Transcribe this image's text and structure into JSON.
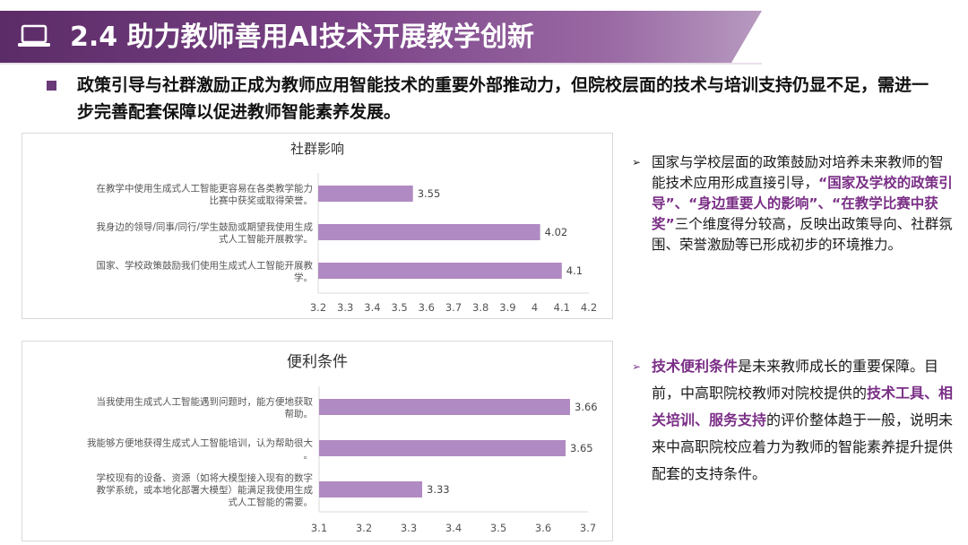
{
  "header": {
    "title": "2.4 助力教师善用AI技术开展教学创新",
    "icon": "laptop-icon"
  },
  "intro": {
    "text": "政策引导与社群激励正成为教师应用智能技术的重要外部推动力，但院校层面的技术与培训支持仍显不足，需进一步完善配套保障以促进教师智能素养发展。"
  },
  "chart_data": [
    {
      "type": "bar",
      "orientation": "horizontal",
      "title": "社群影响",
      "categories": [
        "在教学中使用生成式人工智能更容易在各类教学能力比赛中获奖或取得荣誉。",
        "我身边的领导/同事/同行/学生鼓励或期望我使用生成式人工智能开展教学。",
        "国家、学校政策鼓励我们使用生成式人工智能开展教学。"
      ],
      "category_lines": [
        [
          "在教学中使用生成式人工智能更容易在各类教学能力",
          "比赛中获奖或取得荣誉。"
        ],
        [
          "我身边的领导/同事/同行/学生鼓励或期望我使用生成",
          "式人工智能开展教学。"
        ],
        [
          "国家、学校政策鼓励我们使用生成式人工智能开展教",
          "学。"
        ]
      ],
      "values": [
        3.55,
        4.02,
        4.1
      ],
      "value_labels": [
        "3.55",
        "4.02",
        "4.1"
      ],
      "xlim": [
        3.2,
        4.2
      ],
      "ticks": [
        3.2,
        3.3,
        3.4,
        3.5,
        3.6,
        3.7,
        3.8,
        3.9,
        4,
        4.1,
        4.2
      ],
      "tick_labels": [
        "3.2",
        "3.3",
        "3.4",
        "3.5",
        "3.6",
        "3.7",
        "3.8",
        "3.9",
        "4",
        "4.1",
        "4.2"
      ],
      "bar_color": "#b08ac2",
      "grid": false,
      "legend": "none"
    },
    {
      "type": "bar",
      "orientation": "horizontal",
      "title": "便利条件",
      "categories": [
        "当我使用生成式人工智能遇到问题时，能方便地获取帮助。",
        "我能够方便地获得生成式人工智能培训，认为帮助很大。",
        "学校现有的设备、资源（如将大模型接入现有的数字教学系统，或本地化部署大模型）能满足我使用生成式人工智能的需要。"
      ],
      "category_lines": [
        [
          "当我使用生成式人工智能遇到问题时，能方便地获取",
          "帮助。"
        ],
        [
          "我能够方便地获得生成式人工智能培训，认为帮助很大",
          "。"
        ],
        [
          "学校现有的设备、资源（如将大模型接入现有的数字",
          "教学系统，或本地化部署大模型）能满足我使用生成",
          "式人工智能的需要。"
        ]
      ],
      "values": [
        3.66,
        3.65,
        3.33
      ],
      "value_labels": [
        "3.66",
        "3.65",
        "3.33"
      ],
      "xlim": [
        3.1,
        3.7
      ],
      "ticks": [
        3.1,
        3.2,
        3.3,
        3.4,
        3.5,
        3.6,
        3.7
      ],
      "tick_labels": [
        "3.1",
        "3.2",
        "3.3",
        "3.4",
        "3.5",
        "3.6",
        "3.7"
      ],
      "bar_color": "#b08ac2",
      "grid": false,
      "legend": "none"
    }
  ],
  "notes": [
    {
      "arrow": "➢",
      "parts": [
        {
          "text": "国家与学校层面的政策鼓励对培养未来教师的智能技术应用形成直接引导，",
          "highlight": false
        },
        {
          "text": "“国家及学校的政策引导”、“身边重要人的影响”、“在教学比赛中获奖”",
          "highlight": true
        },
        {
          "text": "三个维度得分较高，反映出政策导向、社群氛围、荣誉激励等已形成初步的环境推力。",
          "highlight": false
        }
      ]
    },
    {
      "arrow": "➢",
      "parts": [
        {
          "text": "技术便利条件",
          "highlight": true
        },
        {
          "text": "是未来教师成长的重要保障。目前，中高职院校教师对院校提供的",
          "highlight": false
        },
        {
          "text": "技术工具、相关培训、服务支持",
          "highlight": true
        },
        {
          "text": "的评价整体趋于一般，说明未来中高职院校应着力为教师的智能素养提升提供配套的支持条件。",
          "highlight": false
        }
      ]
    }
  ],
  "colors": {
    "accent": "#6b3a78",
    "highlight_text": "#7a2e86",
    "bar": "#b08ac2"
  }
}
